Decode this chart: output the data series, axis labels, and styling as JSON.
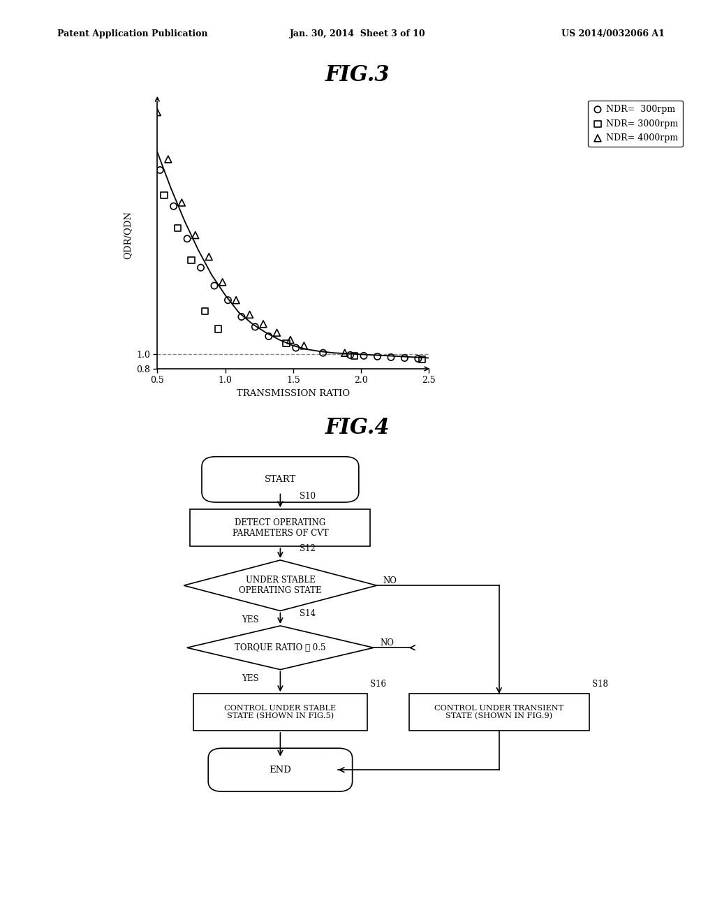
{
  "fig3_title": "FIG.3",
  "fig4_title": "FIG.4",
  "header_left": "Patent Application Publication",
  "header_mid": "Jan. 30, 2014  Sheet 3 of 10",
  "header_right": "US 2014/0032066 A1",
  "xlabel": "TRANSMISSION RATIO",
  "ylabel": "QDR/QDN",
  "xlim": [
    0.5,
    2.5
  ],
  "ylim": [
    0.8,
    4.5
  ],
  "xticks": [
    0.5,
    1.0,
    1.5,
    2.0,
    2.5
  ],
  "yticks": [
    0.8,
    1.0
  ],
  "curve_x": [
    0.5,
    0.6,
    0.7,
    0.8,
    0.9,
    1.0,
    1.1,
    1.2,
    1.3,
    1.4,
    1.5,
    1.6,
    1.7,
    1.8,
    1.9,
    2.0,
    2.1,
    2.2,
    2.3,
    2.4,
    2.5
  ],
  "curve_y": [
    3.8,
    3.3,
    2.85,
    2.45,
    2.1,
    1.82,
    1.58,
    1.42,
    1.3,
    1.2,
    1.12,
    1.07,
    1.04,
    1.02,
    1.01,
    1.0,
    0.99,
    0.98,
    0.97,
    0.96,
    0.95
  ],
  "ndr300_x": [
    0.52,
    0.62,
    0.72,
    0.82,
    0.92,
    1.02,
    1.12,
    1.22,
    1.32,
    1.52,
    1.72,
    1.92,
    2.02,
    2.12,
    2.22,
    2.32,
    2.42
  ],
  "ndr300_y": [
    3.55,
    3.05,
    2.6,
    2.2,
    1.95,
    1.75,
    1.52,
    1.38,
    1.25,
    1.09,
    1.02,
    0.99,
    0.98,
    0.97,
    0.96,
    0.95,
    0.94
  ],
  "ndr3000_x": [
    0.55,
    0.65,
    0.75,
    0.85,
    0.95,
    1.45,
    1.95,
    2.45
  ],
  "ndr3000_y": [
    3.2,
    2.75,
    2.3,
    1.6,
    1.35,
    1.15,
    0.98,
    0.93
  ],
  "ndr4000_x": [
    0.5,
    0.58,
    0.68,
    0.78,
    0.88,
    0.98,
    1.08,
    1.18,
    1.28,
    1.38,
    1.48,
    1.58,
    1.88
  ],
  "ndr4000_y": [
    4.35,
    3.7,
    3.1,
    2.65,
    2.35,
    2.0,
    1.75,
    1.55,
    1.42,
    1.3,
    1.2,
    1.12,
    1.02
  ],
  "dashed_y": 1.0,
  "bg_color": "#ffffff",
  "line_color": "#000000",
  "dashed_color": "#888888",
  "legend_ndr300": "NDR=  300rpm",
  "legend_ndr3000": "NDR= 3000rpm",
  "legend_ndr4000": "NDR= 4000rpm",
  "flowchart": {
    "start_label": "START",
    "end_label": "END",
    "s10_label": "S10",
    "s12_label": "S12",
    "s14_label": "S14",
    "s16_label": "S16",
    "s18_label": "S18",
    "box1_text": "DETECT OPERATING\nPARAMETERS OF CVT",
    "diamond1_text": "UNDER STABLE\nOPERATING STATE",
    "diamond2_text": "TORQUE RATIO ≧ 0.5",
    "box2_text": "CONTROL UNDER STABLE\nSTATE (SHOWN IN FIG.5)",
    "box3_text": "CONTROL UNDER TRANSIENT\nSTATE (SHOWN IN FIG.9)",
    "yes_label": "YES",
    "no_label": "NO"
  }
}
